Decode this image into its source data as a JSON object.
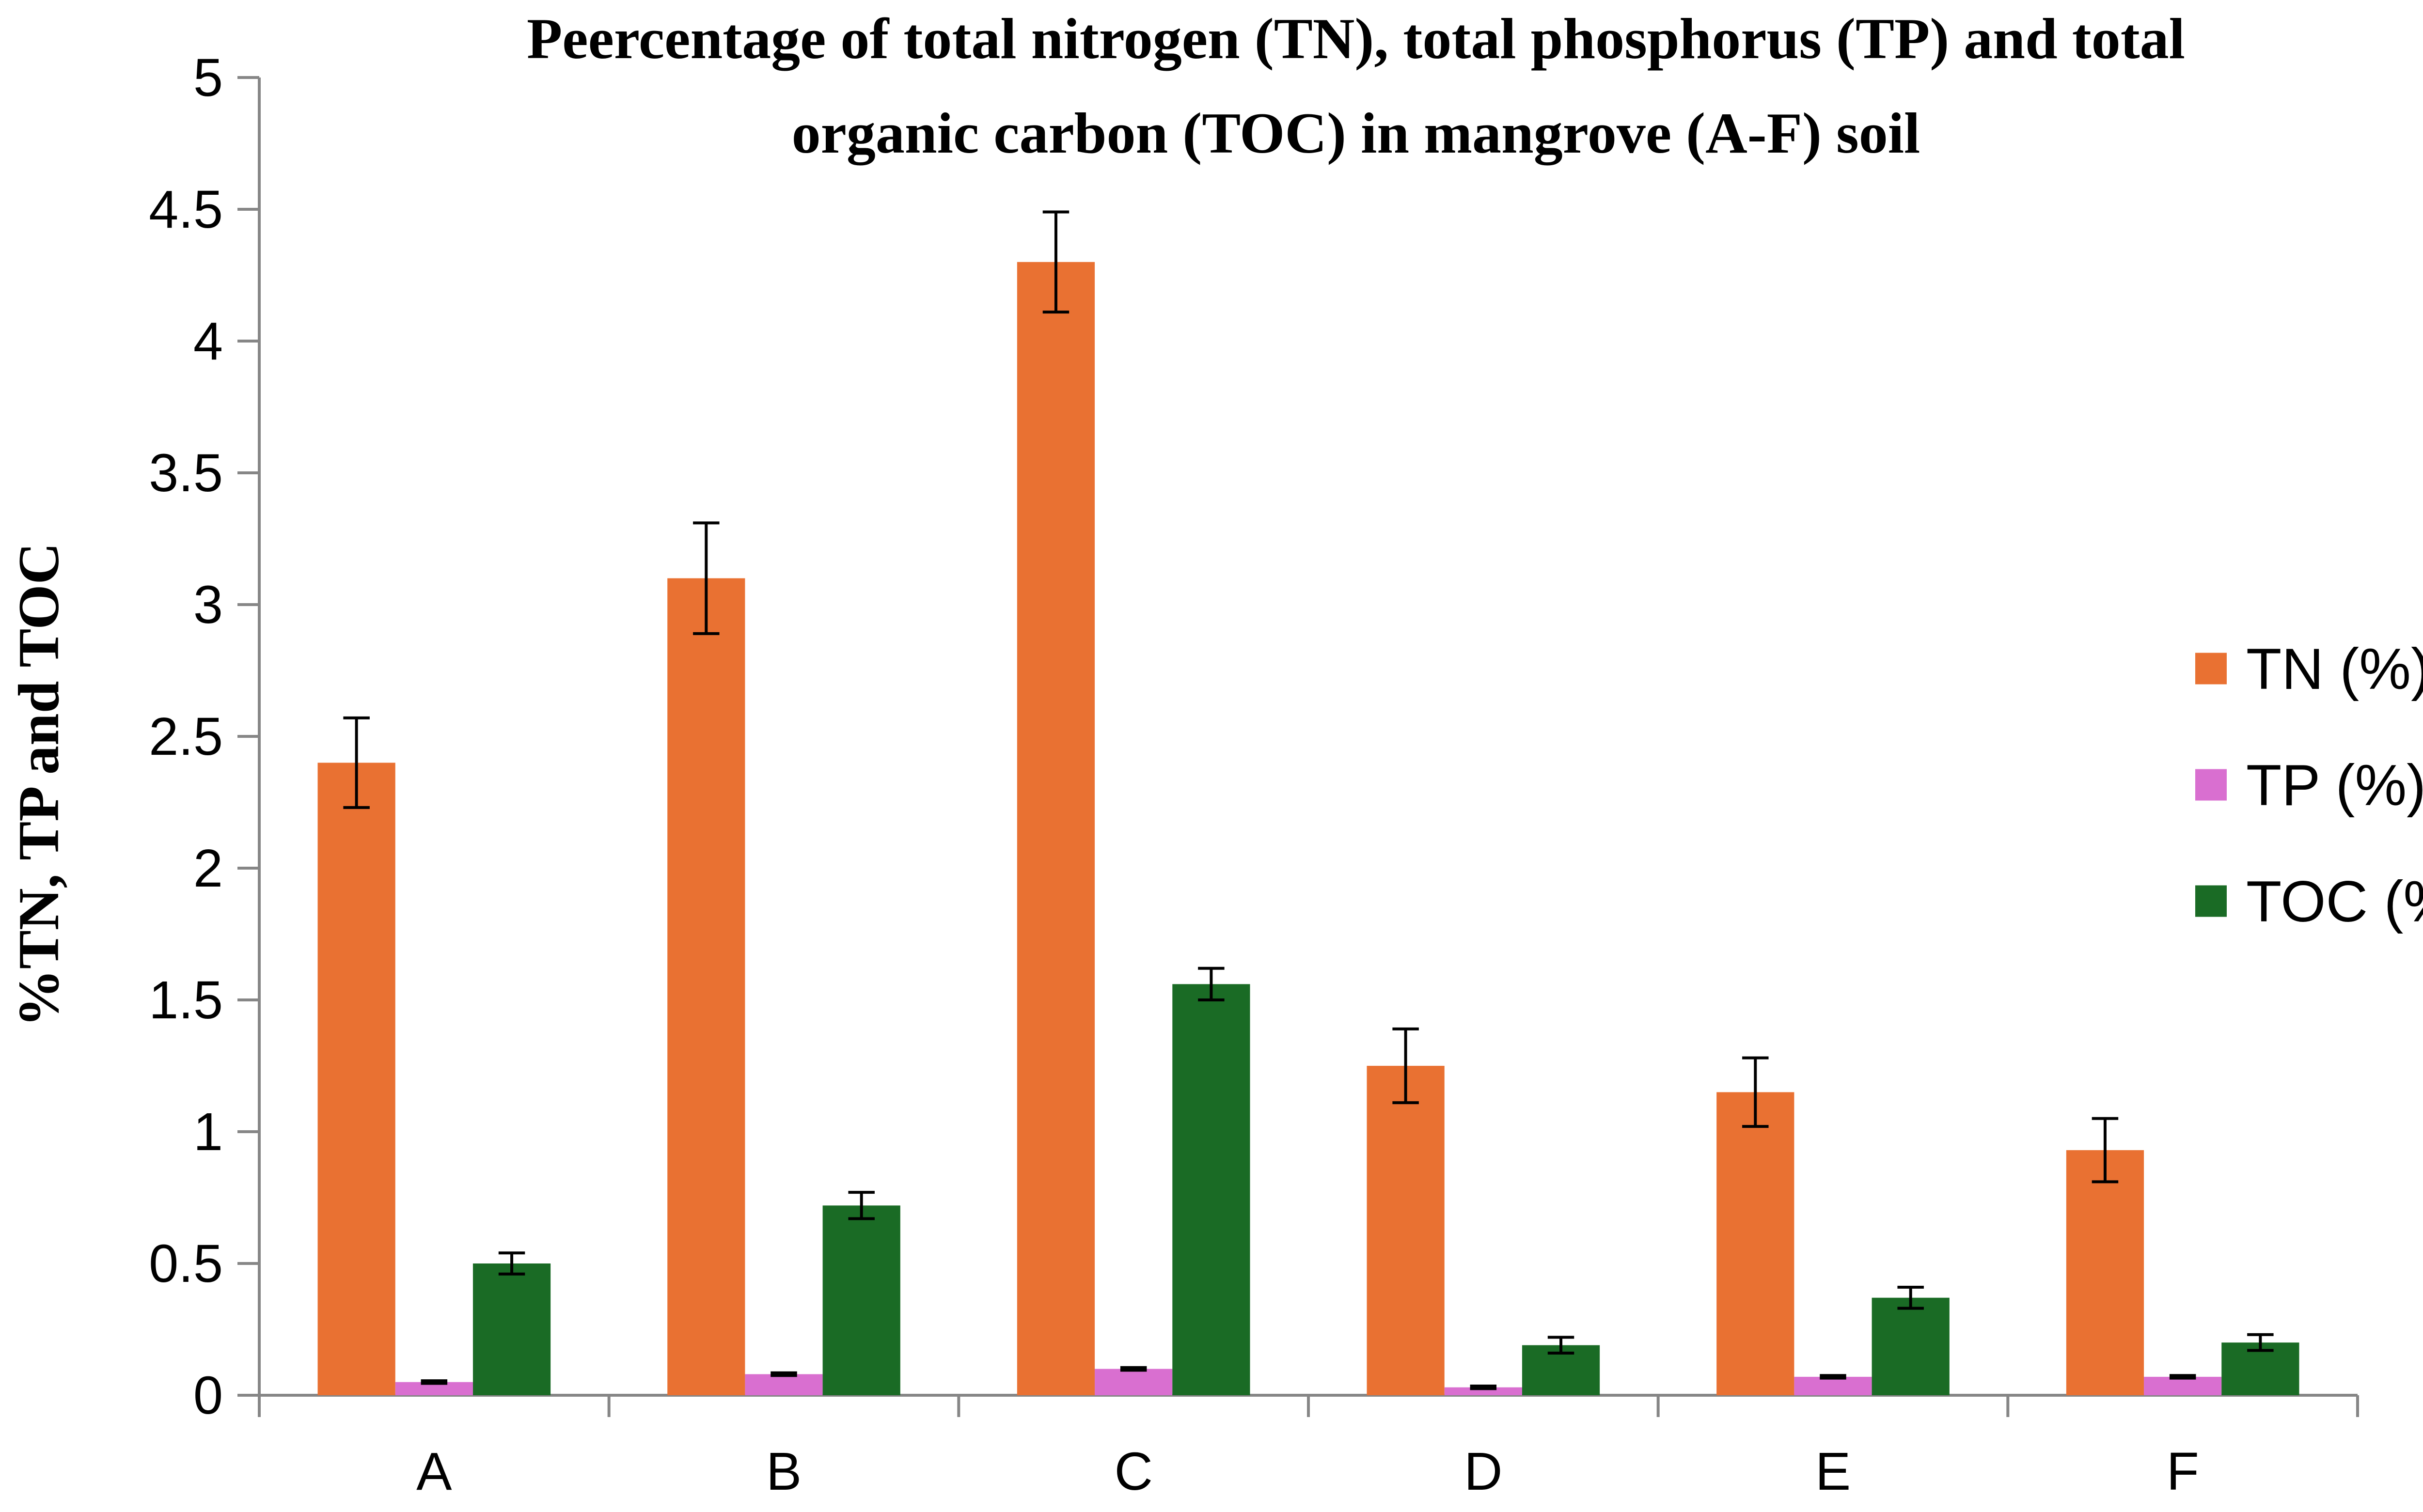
{
  "chart_data": {
    "type": "bar",
    "title_lines": [
      "Peercentage of total nitrogen (TN), total phosphorus (TP) and total",
      "organic carbon (TOC) in mangrove (A-F) soil"
    ],
    "xlabel": "",
    "ylabel": "%TN, TP and TOC",
    "ylim": [
      0,
      5
    ],
    "yticks": [
      "0",
      "0.5",
      "1",
      "1.5",
      "2",
      "2.5",
      "3",
      "3.5",
      "4",
      "4.5",
      "5"
    ],
    "categories": [
      "A",
      "B",
      "C",
      "D",
      "E",
      "F"
    ],
    "series": [
      {
        "name": "TN (%)",
        "color": "#E97132",
        "values": [
          2.4,
          3.1,
          4.3,
          1.25,
          1.15,
          0.93
        ],
        "errors": [
          0.17,
          0.21,
          0.19,
          0.14,
          0.13,
          0.12
        ]
      },
      {
        "name": "TP (%)",
        "color": "#D96FD0",
        "values": [
          0.05,
          0.08,
          0.1,
          0.03,
          0.07,
          0.07
        ],
        "errors": [
          0.005,
          0.005,
          0.005,
          0.005,
          0.005,
          0.005
        ]
      },
      {
        "name": "TOC (%)",
        "color": "#1A6B25",
        "values": [
          0.5,
          0.72,
          1.56,
          0.19,
          0.37,
          0.2
        ],
        "errors": [
          0.04,
          0.05,
          0.06,
          0.03,
          0.04,
          0.03
        ]
      }
    ],
    "grid": false,
    "legend_position": "right",
    "error_bars": true
  }
}
